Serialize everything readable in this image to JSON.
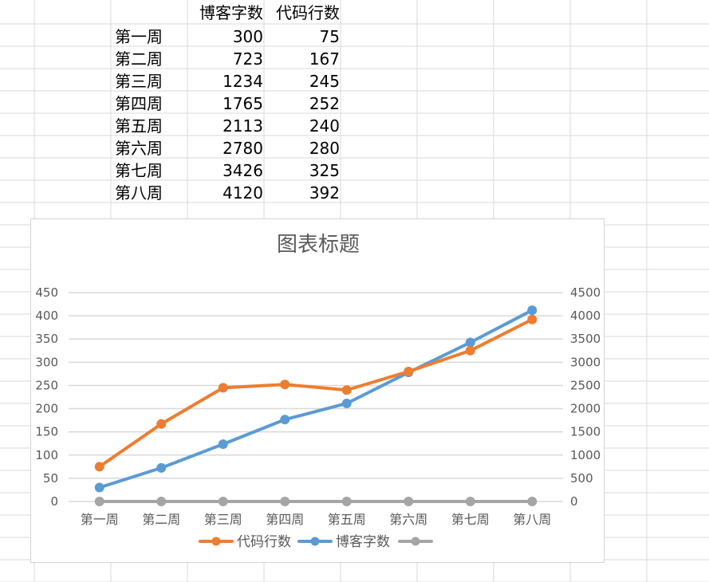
{
  "sheet": {
    "headers": [
      "博客字数",
      "代码行数"
    ],
    "rows": [
      {
        "week": "第一周",
        "blog": "300",
        "code": "75"
      },
      {
        "week": "第二周",
        "blog": "723",
        "code": "167"
      },
      {
        "week": "第三周",
        "blog": "1234",
        "code": "245"
      },
      {
        "week": "第四周",
        "blog": "1765",
        "code": "252"
      },
      {
        "week": "第五周",
        "blog": "2113",
        "code": "240"
      },
      {
        "week": "第六周",
        "blog": "2780",
        "code": "280"
      },
      {
        "week": "第七周",
        "blog": "3426",
        "code": "325"
      },
      {
        "week": "第八周",
        "blog": "4120",
        "code": "392"
      }
    ]
  },
  "chart_data": {
    "type": "line",
    "title": "图表标题",
    "categories": [
      "第一周",
      "第二周",
      "第三周",
      "第四周",
      "第五周",
      "第六周",
      "第七周",
      "第八周"
    ],
    "series": [
      {
        "name": "代码行数",
        "axis": "left",
        "color": "#ed7d31",
        "values": [
          75,
          167,
          245,
          252,
          240,
          280,
          325,
          392
        ]
      },
      {
        "name": "博客字数",
        "axis": "right",
        "color": "#5b9bd5",
        "values": [
          300,
          723,
          1234,
          1765,
          2113,
          2780,
          3426,
          4120
        ]
      },
      {
        "name": "",
        "axis": "left",
        "color": "#a5a5a5",
        "values": [
          0,
          0,
          0,
          0,
          0,
          0,
          0,
          0
        ]
      }
    ],
    "y_left": {
      "range": [
        0,
        450
      ],
      "ticks": [
        "0",
        "50",
        "100",
        "150",
        "200",
        "250",
        "300",
        "350",
        "400",
        "450"
      ]
    },
    "y_right": {
      "range": [
        0,
        4500
      ],
      "ticks": [
        "0",
        "500",
        "1000",
        "1500",
        "2000",
        "2500",
        "3000",
        "3500",
        "4000",
        "4500"
      ]
    },
    "grid": true,
    "legend_position": "bottom"
  }
}
